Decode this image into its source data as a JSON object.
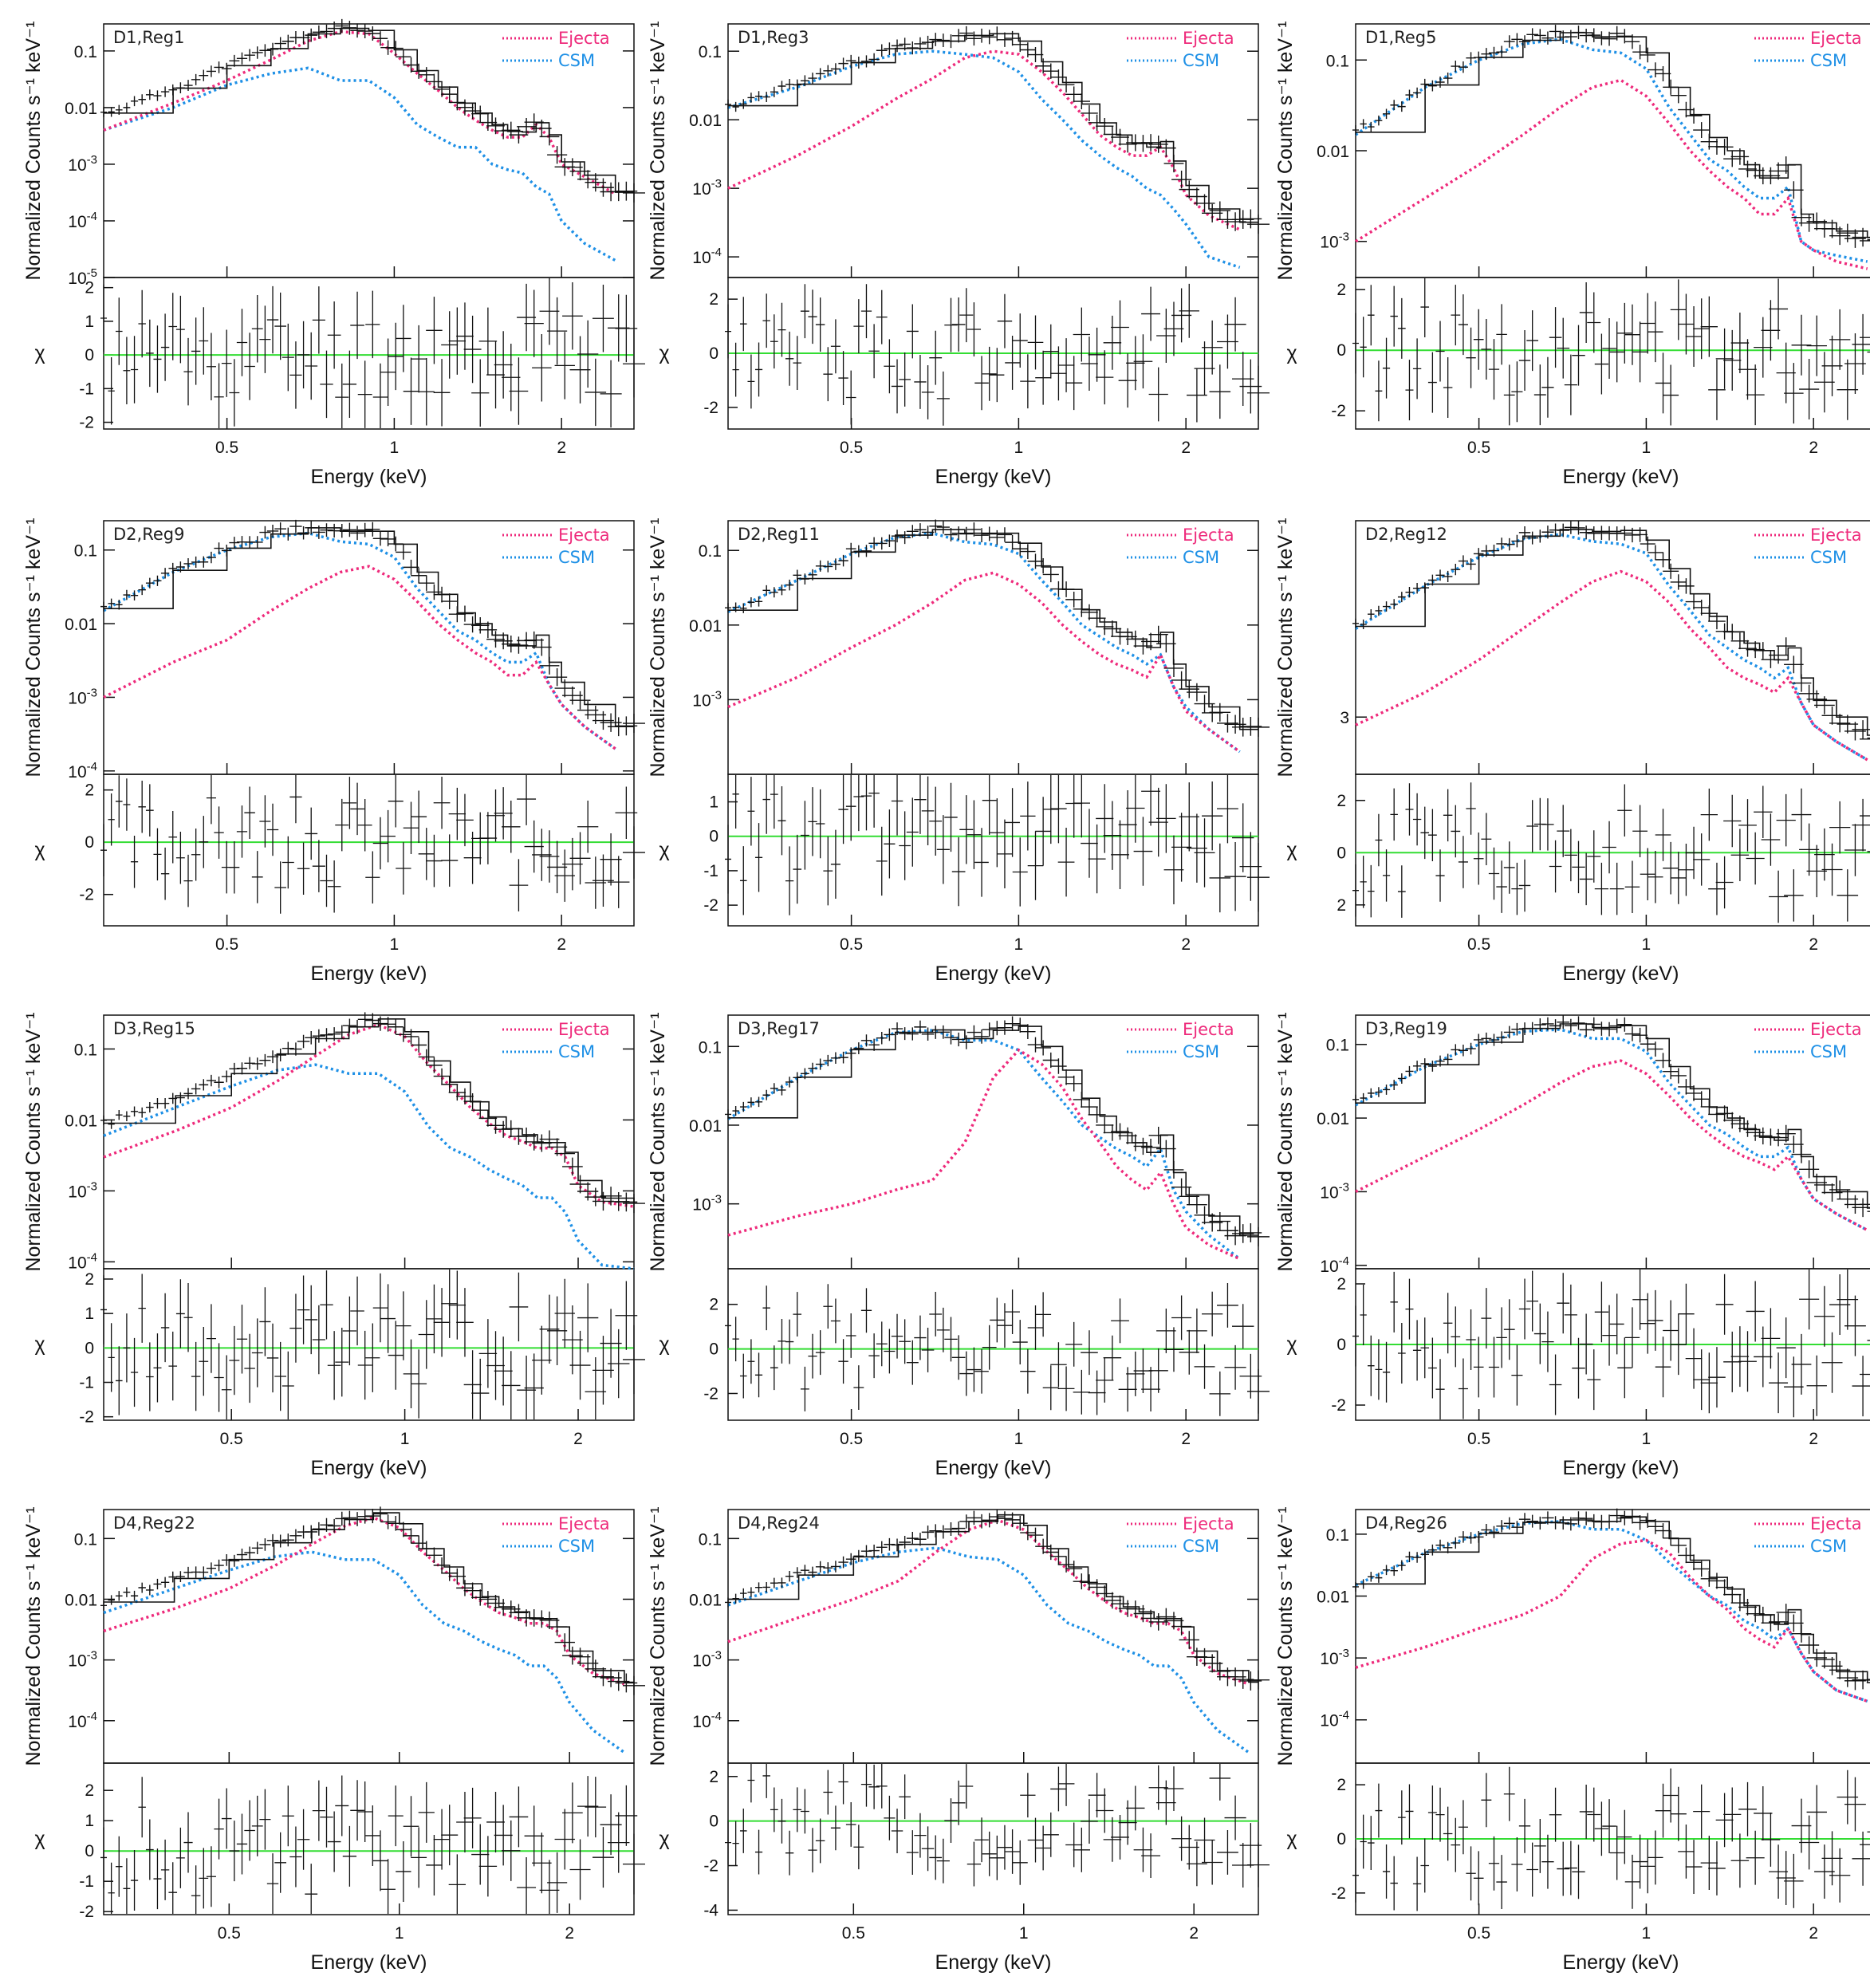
{
  "common": {
    "xlabel": "Energy (keV)",
    "ylabel_top": "Normalized Counts s⁻¹ keV⁻¹",
    "ylabel_bottom": "χ",
    "legend": [
      "Ejecta",
      "CSM"
    ],
    "x_ticks": [
      "0.5",
      "1",
      "2"
    ],
    "colors": {
      "ejecta": "#ee2a7b",
      "csm": "#1e90e6",
      "zero": "#33dd33",
      "data": "#111111"
    }
  },
  "chart_data": [
    {
      "type": "line",
      "title": "D1,Reg1",
      "x": [
        0.3,
        0.4,
        0.5,
        0.6,
        0.7,
        0.8,
        0.9,
        1.0,
        1.1,
        1.2,
        1.3,
        1.4,
        1.5,
        1.6,
        1.7,
        1.8,
        1.9,
        2.0,
        2.2,
        2.5
      ],
      "x_range": [
        0.3,
        2.7
      ],
      "ylog": true,
      "yticks": [
        "10^-5",
        "10^-4",
        "10^-3",
        "0.01",
        "0.1"
      ],
      "ylim": [
        1e-05,
        0.3
      ],
      "series": [
        {
          "name": "Ejecta",
          "values": [
            0.004,
            0.012,
            0.03,
            0.07,
            0.15,
            0.22,
            0.2,
            0.09,
            0.04,
            0.02,
            0.01,
            0.006,
            0.004,
            0.003,
            0.003,
            0.005,
            0.003,
            0.001,
            0.0006,
            0.0003
          ]
        },
        {
          "name": "CSM",
          "values": [
            0.004,
            0.01,
            0.025,
            0.04,
            0.05,
            0.03,
            0.03,
            0.015,
            0.005,
            0.003,
            0.002,
            0.002,
            0.001,
            0.0008,
            0.0007,
            0.0004,
            0.0003,
            0.0001,
            4e-05,
            2e-05
          ]
        }
      ],
      "chi_yticks": [
        "-2",
        "-1",
        "0",
        "1",
        "2"
      ],
      "chi_range": [
        -2.2,
        2.3
      ]
    },
    {
      "type": "line",
      "title": "D1,Reg3",
      "x": [
        0.3,
        0.4,
        0.5,
        0.6,
        0.7,
        0.8,
        0.9,
        1.0,
        1.1,
        1.2,
        1.3,
        1.4,
        1.5,
        1.6,
        1.7,
        1.8,
        1.9,
        2.0,
        2.2,
        2.5
      ],
      "x_range": [
        0.3,
        2.7
      ],
      "ylog": true,
      "yticks": [
        "10^-4",
        "10^-3",
        "0.01",
        "0.1"
      ],
      "ylim": [
        5e-05,
        0.25
      ],
      "series": [
        {
          "name": "Ejecta",
          "values": [
            0.001,
            0.003,
            0.008,
            0.02,
            0.04,
            0.08,
            0.1,
            0.09,
            0.05,
            0.025,
            0.012,
            0.006,
            0.004,
            0.003,
            0.003,
            0.004,
            0.002,
            0.0008,
            0.0004,
            0.00025
          ]
        },
        {
          "name": "CSM",
          "values": [
            0.015,
            0.03,
            0.06,
            0.09,
            0.1,
            0.09,
            0.08,
            0.05,
            0.02,
            0.01,
            0.005,
            0.003,
            0.002,
            0.0015,
            0.001,
            0.0008,
            0.0005,
            0.0003,
            0.0001,
            7e-05
          ]
        }
      ],
      "chi_yticks": [
        "-2",
        "0",
        "2"
      ],
      "chi_range": [
        -2.8,
        2.8
      ]
    },
    {
      "type": "line",
      "title": "D1,Reg5",
      "x": [
        0.3,
        0.4,
        0.5,
        0.6,
        0.7,
        0.8,
        0.9,
        1.0,
        1.1,
        1.2,
        1.3,
        1.4,
        1.5,
        1.6,
        1.7,
        1.8,
        1.9,
        2.0,
        2.2,
        2.5
      ],
      "x_range": [
        0.3,
        2.7
      ],
      "ylog": true,
      "yticks": [
        "10^-3",
        "0.01",
        "0.1"
      ],
      "ylim": [
        0.0004,
        0.25
      ],
      "series": [
        {
          "name": "Ejecta",
          "values": [
            0.001,
            0.003,
            0.007,
            0.015,
            0.03,
            0.05,
            0.06,
            0.04,
            0.02,
            0.01,
            0.006,
            0.004,
            0.003,
            0.002,
            0.002,
            0.003,
            0.001,
            0.0008,
            0.0006,
            0.0005
          ]
        },
        {
          "name": "CSM",
          "values": [
            0.015,
            0.05,
            0.1,
            0.15,
            0.17,
            0.13,
            0.12,
            0.08,
            0.03,
            0.015,
            0.008,
            0.006,
            0.004,
            0.003,
            0.003,
            0.004,
            0.001,
            0.0008,
            0.0007,
            0.0006
          ]
        }
      ],
      "chi_yticks": [
        "-2",
        "0",
        "2"
      ],
      "chi_range": [
        -2.6,
        2.4
      ]
    },
    {
      "type": "line",
      "title": "D2,Reg9",
      "x": [
        0.3,
        0.4,
        0.5,
        0.6,
        0.7,
        0.8,
        0.9,
        1.0,
        1.1,
        1.2,
        1.3,
        1.4,
        1.5,
        1.6,
        1.7,
        1.8,
        1.9,
        2.0,
        2.2,
        2.5
      ],
      "x_range": [
        0.3,
        2.7
      ],
      "ylog": true,
      "yticks": [
        "10^-4",
        "10^-3",
        "0.01",
        "0.1"
      ],
      "ylim": [
        9e-05,
        0.25
      ],
      "series": [
        {
          "name": "Ejecta",
          "values": [
            0.001,
            0.003,
            0.006,
            0.015,
            0.03,
            0.05,
            0.06,
            0.04,
            0.02,
            0.01,
            0.006,
            0.004,
            0.003,
            0.002,
            0.002,
            0.003,
            0.0015,
            0.0008,
            0.0004,
            0.0002
          ]
        },
        {
          "name": "CSM",
          "values": [
            0.015,
            0.05,
            0.1,
            0.15,
            0.17,
            0.13,
            0.12,
            0.08,
            0.03,
            0.015,
            0.008,
            0.006,
            0.004,
            0.003,
            0.003,
            0.004,
            0.0015,
            0.0008,
            0.0004,
            0.0002
          ]
        }
      ],
      "chi_yticks": [
        "-2",
        "0",
        "2"
      ],
      "chi_range": [
        -3.2,
        2.6
      ]
    },
    {
      "type": "line",
      "title": "D2,Reg11",
      "x": [
        0.3,
        0.4,
        0.5,
        0.6,
        0.7,
        0.8,
        0.9,
        1.0,
        1.1,
        1.2,
        1.3,
        1.4,
        1.5,
        1.6,
        1.7,
        1.8,
        1.9,
        2.0,
        2.2,
        2.5
      ],
      "x_range": [
        0.3,
        2.7
      ],
      "ylog": true,
      "yticks": [
        "10^-3",
        "0.01",
        "0.1"
      ],
      "ylim": [
        0.0001,
        0.25
      ],
      "series": [
        {
          "name": "Ejecta",
          "values": [
            0.0008,
            0.002,
            0.005,
            0.01,
            0.02,
            0.04,
            0.05,
            0.035,
            0.02,
            0.01,
            0.006,
            0.004,
            0.003,
            0.0025,
            0.002,
            0.004,
            0.0015,
            0.0007,
            0.0004,
            0.0002
          ]
        },
        {
          "name": "CSM",
          "values": [
            0.015,
            0.04,
            0.09,
            0.15,
            0.17,
            0.13,
            0.12,
            0.09,
            0.04,
            0.02,
            0.01,
            0.007,
            0.005,
            0.004,
            0.003,
            0.004,
            0.0015,
            0.0008,
            0.0004,
            0.0002
          ]
        }
      ],
      "chi_yticks": [
        "-2",
        "-1",
        "0",
        "1"
      ],
      "chi_range": [
        -2.6,
        1.8
      ]
    },
    {
      "type": "line",
      "title": "D2,Reg12",
      "x": [
        0.3,
        0.4,
        0.5,
        0.6,
        0.7,
        0.8,
        0.9,
        1.0,
        1.1,
        1.2,
        1.3,
        1.4,
        1.5,
        1.6,
        1.7,
        1.8,
        1.9,
        2.0,
        2.2,
        2.5
      ],
      "x_range": [
        0.3,
        2.7
      ],
      "ylog": true,
      "yticks": [
        "3"
      ],
      "ylim": [
        0.0002,
        0.25
      ],
      "series": [
        {
          "name": "Ejecta",
          "values": [
            0.0008,
            0.002,
            0.005,
            0.012,
            0.025,
            0.045,
            0.06,
            0.045,
            0.025,
            0.012,
            0.007,
            0.004,
            0.003,
            0.0025,
            0.002,
            0.003,
            0.0015,
            0.0008,
            0.0005,
            0.0003
          ]
        },
        {
          "name": "CSM",
          "values": [
            0.012,
            0.04,
            0.09,
            0.15,
            0.17,
            0.14,
            0.13,
            0.1,
            0.04,
            0.02,
            0.01,
            0.007,
            0.005,
            0.004,
            0.003,
            0.004,
            0.0015,
            0.0008,
            0.0005,
            0.0003
          ]
        }
      ],
      "chi_yticks": [
        "2",
        "0",
        "2"
      ],
      "chi_range": [
        -2.8,
        3.0
      ]
    },
    {
      "type": "line",
      "title": "D3,Reg15",
      "x": [
        0.3,
        0.4,
        0.5,
        0.6,
        0.7,
        0.8,
        0.9,
        1.0,
        1.1,
        1.2,
        1.3,
        1.4,
        1.5,
        1.6,
        1.7,
        1.8,
        1.9,
        2.0,
        2.2,
        2.5
      ],
      "x_range": [
        0.3,
        2.5
      ],
      "ylog": true,
      "yticks": [
        "10^-4",
        "10^-3",
        "0.01",
        "0.1"
      ],
      "ylim": [
        8e-05,
        0.3
      ],
      "series": [
        {
          "name": "Ejecta",
          "values": [
            0.003,
            0.007,
            0.015,
            0.035,
            0.08,
            0.16,
            0.22,
            0.15,
            0.06,
            0.03,
            0.015,
            0.009,
            0.006,
            0.005,
            0.004,
            0.004,
            0.003,
            0.0012,
            0.0007,
            0.0006
          ]
        },
        {
          "name": "CSM",
          "values": [
            0.006,
            0.015,
            0.03,
            0.05,
            0.06,
            0.045,
            0.045,
            0.025,
            0.008,
            0.004,
            0.003,
            0.002,
            0.0015,
            0.0012,
            0.0008,
            0.0008,
            0.0005,
            0.0002,
            9e-05,
            7e-05
          ]
        }
      ],
      "chi_yticks": [
        "-2",
        "-1",
        "0",
        "1",
        "2"
      ],
      "chi_range": [
        -2.1,
        2.3
      ]
    },
    {
      "type": "line",
      "title": "D3,Reg17",
      "x": [
        0.3,
        0.4,
        0.5,
        0.6,
        0.7,
        0.8,
        0.9,
        1.0,
        1.1,
        1.2,
        1.3,
        1.4,
        1.5,
        1.6,
        1.7,
        1.8,
        1.9,
        2.0,
        2.2,
        2.5
      ],
      "x_range": [
        0.3,
        2.7
      ],
      "ylog": true,
      "yticks": [
        "10^-3",
        "0.01",
        "0.1"
      ],
      "ylim": [
        0.00015,
        0.25
      ],
      "series": [
        {
          "name": "Ejecta",
          "values": [
            0.0004,
            0.0007,
            0.001,
            0.0015,
            0.002,
            0.006,
            0.04,
            0.09,
            0.06,
            0.03,
            0.012,
            0.006,
            0.003,
            0.002,
            0.0015,
            0.0025,
            0.001,
            0.0005,
            0.0003,
            0.0002
          ]
        },
        {
          "name": "CSM",
          "values": [
            0.012,
            0.04,
            0.09,
            0.15,
            0.16,
            0.12,
            0.12,
            0.09,
            0.04,
            0.02,
            0.01,
            0.007,
            0.005,
            0.004,
            0.003,
            0.005,
            0.0015,
            0.0008,
            0.0004,
            0.0002
          ]
        }
      ],
      "chi_yticks": [
        "-2",
        "0",
        "2"
      ],
      "chi_range": [
        -3.2,
        3.6
      ]
    },
    {
      "type": "line",
      "title": "D3,Reg19",
      "x": [
        0.3,
        0.4,
        0.5,
        0.6,
        0.7,
        0.8,
        0.9,
        1.0,
        1.1,
        1.2,
        1.3,
        1.4,
        1.5,
        1.6,
        1.7,
        1.8,
        1.9,
        2.0,
        2.2,
        2.5
      ],
      "x_range": [
        0.3,
        2.7
      ],
      "ylog": true,
      "yticks": [
        "10^-4",
        "10^-3",
        "0.01",
        "0.1"
      ],
      "ylim": [
        9e-05,
        0.25
      ],
      "series": [
        {
          "name": "Ejecta",
          "values": [
            0.001,
            0.003,
            0.007,
            0.015,
            0.03,
            0.05,
            0.06,
            0.04,
            0.02,
            0.01,
            0.006,
            0.004,
            0.003,
            0.0025,
            0.002,
            0.003,
            0.0015,
            0.0008,
            0.0005,
            0.0003
          ]
        },
        {
          "name": "CSM",
          "values": [
            0.015,
            0.05,
            0.1,
            0.15,
            0.16,
            0.12,
            0.12,
            0.08,
            0.03,
            0.015,
            0.008,
            0.006,
            0.004,
            0.003,
            0.003,
            0.004,
            0.0015,
            0.0008,
            0.0005,
            0.0003
          ]
        }
      ],
      "chi_yticks": [
        "-2",
        "0",
        "2"
      ],
      "chi_range": [
        -2.5,
        2.5
      ]
    },
    {
      "type": "line",
      "title": "D4,Reg22",
      "x": [
        0.3,
        0.4,
        0.5,
        0.6,
        0.7,
        0.8,
        0.9,
        1.0,
        1.1,
        1.2,
        1.3,
        1.4,
        1.5,
        1.6,
        1.7,
        1.8,
        1.9,
        2.0,
        2.2,
        2.5
      ],
      "x_range": [
        0.3,
        2.6
      ],
      "ylog": true,
      "yticks": [
        "10^-4",
        "10^-3",
        "0.01",
        "0.1"
      ],
      "ylim": [
        2e-05,
        0.3
      ],
      "series": [
        {
          "name": "Ejecta",
          "values": [
            0.003,
            0.007,
            0.015,
            0.035,
            0.08,
            0.16,
            0.22,
            0.15,
            0.06,
            0.03,
            0.015,
            0.009,
            0.006,
            0.005,
            0.004,
            0.004,
            0.003,
            0.0012,
            0.0006,
            0.0004
          ]
        },
        {
          "name": "CSM",
          "values": [
            0.006,
            0.015,
            0.03,
            0.05,
            0.06,
            0.045,
            0.045,
            0.025,
            0.008,
            0.004,
            0.003,
            0.002,
            0.0015,
            0.0012,
            0.0008,
            0.0008,
            0.0005,
            0.0002,
            7e-05,
            3e-05
          ]
        }
      ],
      "chi_yticks": [
        "-2",
        "-1",
        "0",
        "1",
        "2"
      ],
      "chi_range": [
        -2.1,
        2.9
      ]
    },
    {
      "type": "line",
      "title": "D4,Reg24",
      "x": [
        0.3,
        0.4,
        0.5,
        0.6,
        0.7,
        0.8,
        0.9,
        1.0,
        1.1,
        1.2,
        1.3,
        1.4,
        1.5,
        1.6,
        1.7,
        1.8,
        1.9,
        2.0,
        2.2,
        2.5
      ],
      "x_range": [
        0.3,
        2.6
      ],
      "ylog": true,
      "yticks": [
        "10^-4",
        "10^-3",
        "0.01",
        "0.1"
      ],
      "ylim": [
        2e-05,
        0.3
      ],
      "series": [
        {
          "name": "Ejecta",
          "values": [
            0.002,
            0.005,
            0.01,
            0.02,
            0.06,
            0.14,
            0.2,
            0.14,
            0.06,
            0.03,
            0.015,
            0.009,
            0.006,
            0.005,
            0.004,
            0.004,
            0.003,
            0.0012,
            0.0006,
            0.0004
          ]
        },
        {
          "name": "CSM",
          "values": [
            0.008,
            0.02,
            0.04,
            0.06,
            0.07,
            0.05,
            0.045,
            0.025,
            0.008,
            0.004,
            0.003,
            0.002,
            0.0015,
            0.0012,
            0.0008,
            0.0008,
            0.0005,
            0.0002,
            7e-05,
            3e-05
          ]
        }
      ],
      "chi_yticks": [
        "-4",
        "-2",
        "0",
        "2"
      ],
      "chi_range": [
        -4.2,
        2.6
      ]
    },
    {
      "type": "line",
      "title": "D4,Reg26",
      "x": [
        0.3,
        0.4,
        0.5,
        0.6,
        0.7,
        0.8,
        0.9,
        1.0,
        1.1,
        1.2,
        1.3,
        1.4,
        1.5,
        1.6,
        1.7,
        1.8,
        1.9,
        2.0,
        2.2,
        2.5
      ],
      "x_range": [
        0.3,
        2.7
      ],
      "ylog": true,
      "yticks": [
        "10^-4",
        "10^-3",
        "0.01",
        "0.1"
      ],
      "ylim": [
        2e-05,
        0.25
      ],
      "series": [
        {
          "name": "Ejecta",
          "values": [
            0.0007,
            0.0015,
            0.003,
            0.005,
            0.01,
            0.04,
            0.07,
            0.08,
            0.05,
            0.02,
            0.01,
            0.006,
            0.003,
            0.002,
            0.0015,
            0.003,
            0.0012,
            0.0006,
            0.0003,
            0.0002
          ]
        },
        {
          "name": "CSM",
          "values": [
            0.015,
            0.05,
            0.1,
            0.15,
            0.16,
            0.12,
            0.12,
            0.08,
            0.035,
            0.018,
            0.01,
            0.007,
            0.004,
            0.003,
            0.002,
            0.003,
            0.0012,
            0.0006,
            0.0003,
            0.0002
          ]
        }
      ],
      "chi_yticks": [
        "-2",
        "0",
        "2"
      ],
      "chi_range": [
        -2.8,
        2.8
      ]
    }
  ]
}
